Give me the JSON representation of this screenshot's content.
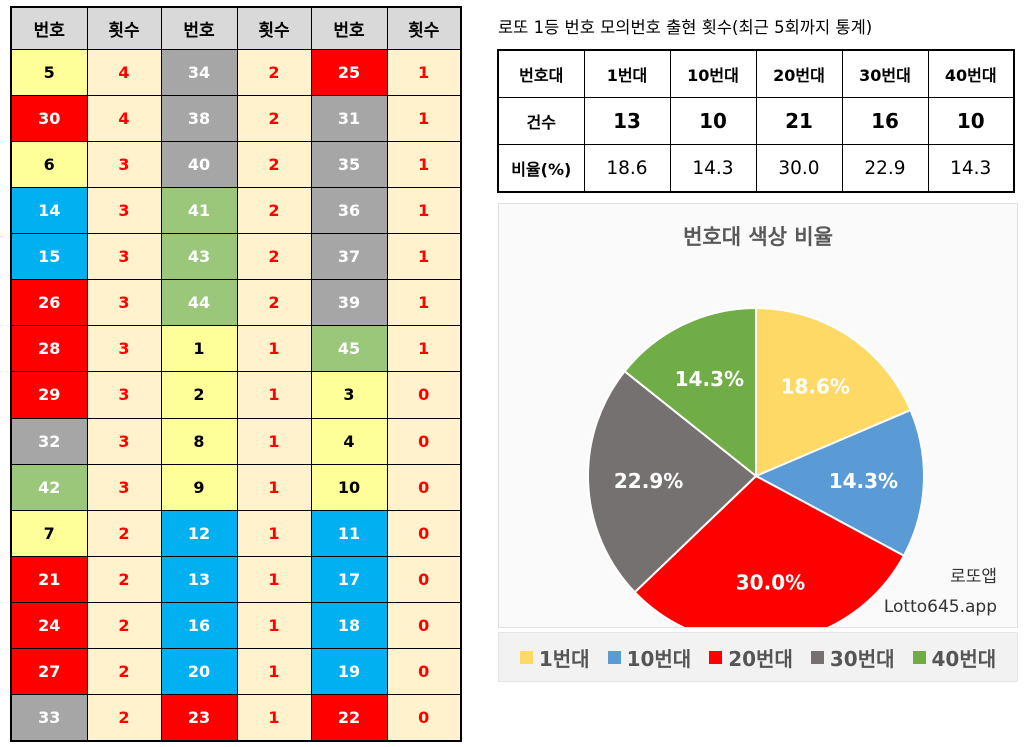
{
  "freq_table": {
    "headers": [
      "번호",
      "횟수",
      "번호",
      "횟수",
      "번호",
      "횟수"
    ],
    "rows": [
      [
        {
          "n": "5",
          "c": "4",
          "k": "yellow"
        },
        {
          "n": "34",
          "c": "2",
          "k": "gray"
        },
        {
          "n": "25",
          "c": "1",
          "k": "red"
        }
      ],
      [
        {
          "n": "30",
          "c": "4",
          "k": "red"
        },
        {
          "n": "38",
          "c": "2",
          "k": "gray"
        },
        {
          "n": "31",
          "c": "1",
          "k": "gray"
        }
      ],
      [
        {
          "n": "6",
          "c": "3",
          "k": "yellow"
        },
        {
          "n": "40",
          "c": "2",
          "k": "gray"
        },
        {
          "n": "35",
          "c": "1",
          "k": "gray"
        }
      ],
      [
        {
          "n": "14",
          "c": "3",
          "k": "blue"
        },
        {
          "n": "41",
          "c": "2",
          "k": "green"
        },
        {
          "n": "36",
          "c": "1",
          "k": "gray"
        }
      ],
      [
        {
          "n": "15",
          "c": "3",
          "k": "blue"
        },
        {
          "n": "43",
          "c": "2",
          "k": "green"
        },
        {
          "n": "37",
          "c": "1",
          "k": "gray"
        }
      ],
      [
        {
          "n": "26",
          "c": "3",
          "k": "red"
        },
        {
          "n": "44",
          "c": "2",
          "k": "green"
        },
        {
          "n": "39",
          "c": "1",
          "k": "gray"
        }
      ],
      [
        {
          "n": "28",
          "c": "3",
          "k": "red"
        },
        {
          "n": "1",
          "c": "1",
          "k": "yellow"
        },
        {
          "n": "45",
          "c": "1",
          "k": "green"
        }
      ],
      [
        {
          "n": "29",
          "c": "3",
          "k": "red"
        },
        {
          "n": "2",
          "c": "1",
          "k": "yellow"
        },
        {
          "n": "3",
          "c": "0",
          "k": "yellow"
        }
      ],
      [
        {
          "n": "32",
          "c": "3",
          "k": "gray"
        },
        {
          "n": "8",
          "c": "1",
          "k": "yellow"
        },
        {
          "n": "4",
          "c": "0",
          "k": "yellow"
        }
      ],
      [
        {
          "n": "42",
          "c": "3",
          "k": "green"
        },
        {
          "n": "9",
          "c": "1",
          "k": "yellow"
        },
        {
          "n": "10",
          "c": "0",
          "k": "yellow"
        }
      ],
      [
        {
          "n": "7",
          "c": "2",
          "k": "yellow"
        },
        {
          "n": "12",
          "c": "1",
          "k": "blue"
        },
        {
          "n": "11",
          "c": "0",
          "k": "blue"
        }
      ],
      [
        {
          "n": "21",
          "c": "2",
          "k": "red"
        },
        {
          "n": "13",
          "c": "1",
          "k": "blue"
        },
        {
          "n": "17",
          "c": "0",
          "k": "blue"
        }
      ],
      [
        {
          "n": "24",
          "c": "2",
          "k": "red"
        },
        {
          "n": "16",
          "c": "1",
          "k": "blue"
        },
        {
          "n": "18",
          "c": "0",
          "k": "blue"
        }
      ],
      [
        {
          "n": "27",
          "c": "2",
          "k": "red"
        },
        {
          "n": "20",
          "c": "1",
          "k": "blue"
        },
        {
          "n": "19",
          "c": "0",
          "k": "blue"
        }
      ],
      [
        {
          "n": "33",
          "c": "2",
          "k": "gray"
        },
        {
          "n": "23",
          "c": "1",
          "k": "red"
        },
        {
          "n": "22",
          "c": "0",
          "k": "red"
        }
      ]
    ]
  },
  "summary": {
    "title": "로또 1등 번호 모의번호 출현 횟수(최근 5회까지 통계)",
    "header_label": "번호대",
    "count_label": "건수",
    "ratio_label": "비율(%)",
    "bands": [
      "1번대",
      "10번대",
      "20번대",
      "30번대",
      "40번대"
    ],
    "counts": [
      "13",
      "10",
      "21",
      "16",
      "10"
    ],
    "ratios": [
      "18.6",
      "14.3",
      "30.0",
      "22.9",
      "14.3"
    ]
  },
  "chart_data": {
    "type": "pie",
    "title": "번호대 색상 비율",
    "categories": [
      "1번대",
      "10번대",
      "20번대",
      "30번대",
      "40번대"
    ],
    "values": [
      18.6,
      14.3,
      30.0,
      22.9,
      14.3
    ],
    "labels": [
      "18.6%",
      "14.3%",
      "30.0%",
      "22.9%",
      "14.3%"
    ],
    "colors": [
      "#ffd966",
      "#5b9bd5",
      "#ff0000",
      "#767171",
      "#70ad47"
    ],
    "legend_position": "bottom",
    "watermark_1": "로또앱",
    "watermark_2": "Lotto645.app"
  },
  "colors": {
    "yellow": "#ffff99",
    "blue": "#00b0f0",
    "red": "#ff0000",
    "gray": "#a6a6a6",
    "green": "#9bc77a",
    "count_bg": "#fff2cc",
    "count_text": "#ff0000",
    "header_bg": "#d9d9d9"
  }
}
